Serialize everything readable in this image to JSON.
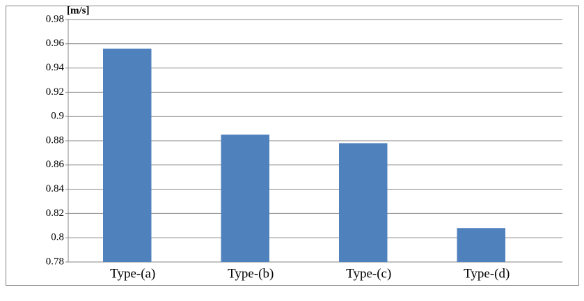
{
  "chart_data": {
    "type": "bar",
    "y_unit": "[m/s]",
    "categories": [
      "Type-(a)",
      "Type-(b)",
      "Type-(c)",
      "Type-(d)"
    ],
    "values": [
      0.956,
      0.885,
      0.878,
      0.808
    ],
    "color": "#4f81bd",
    "ylim": [
      0.78,
      0.98
    ],
    "yticks": [
      0.78,
      0.8,
      0.82,
      0.84,
      0.86,
      0.88,
      0.9,
      0.92,
      0.94,
      0.96,
      0.98
    ],
    "grid": true
  }
}
